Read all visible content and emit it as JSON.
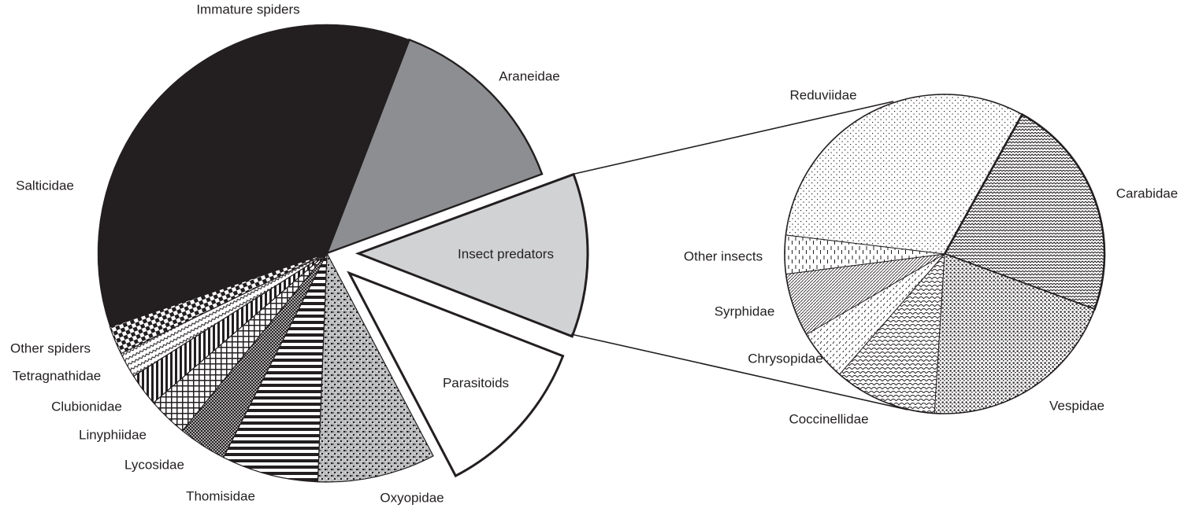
{
  "chart_data": [
    {
      "type": "pie",
      "title": "",
      "name": "Natural enemies (main pie)",
      "start_angle_deg": 251.2,
      "slices": [
        {
          "label": "Salticidae",
          "value": 15.0,
          "fill": "solid-black",
          "color": "#231f20"
        },
        {
          "label": "Immature spiders",
          "value": 21.0,
          "fill": "solid-black",
          "color": "#231f20"
        },
        {
          "label": "Araneidae",
          "value": 13.5,
          "fill": "solid-gray",
          "color": "#8d8e91"
        },
        {
          "label": "Insect predators",
          "value": 11.5,
          "fill": "solid-lightgray",
          "color": "#d1d2d4",
          "exploded": true
        },
        {
          "label": "Parasitoids",
          "value": 11.4,
          "fill": "solid-white",
          "color": "#ffffff",
          "exploded": true
        },
        {
          "label": "Oxyopidae",
          "value": 8.3,
          "fill": "dotted-dense-cross",
          "color": "#231f20"
        },
        {
          "label": "Thomisidae",
          "value": 6.8,
          "fill": "horizontal-stripes",
          "color": "#231f20"
        },
        {
          "label": "Lycosidae",
          "value": 3.4,
          "fill": "dense-crosshatch",
          "color": "#231f20"
        },
        {
          "label": "Linyphiidae",
          "value": 2.8,
          "fill": "grid",
          "color": "#231f20"
        },
        {
          "label": "Clubionidae",
          "value": 2.3,
          "fill": "vertical-stripes",
          "color": "#231f20"
        },
        {
          "label": "Tetragnathidae",
          "value": 1.8,
          "fill": "wavy",
          "color": "#231f20"
        },
        {
          "label": "Other spiders",
          "value": 2.0,
          "fill": "checkerboard",
          "color": "#231f20"
        }
      ]
    },
    {
      "type": "pie",
      "title": "",
      "name": "Insect predators breakdown (detail pie)",
      "start_angle_deg": 276.8,
      "slices": [
        {
          "label": "Reduviidae",
          "value": 31.2,
          "fill": "sparse-dots",
          "color": "#231f20"
        },
        {
          "label": "Carabidae",
          "value": 22.6,
          "fill": "zigzag",
          "color": "#231f20"
        },
        {
          "label": "Vespidae",
          "value": 20.4,
          "fill": "dense-squares",
          "color": "#231f20"
        },
        {
          "label": "Coccinellidae",
          "value": 10.4,
          "fill": "scales",
          "color": "#231f20"
        },
        {
          "label": "Chrysopidae",
          "value": 5.2,
          "fill": "dashed-diagonal",
          "color": "#231f20"
        },
        {
          "label": "Syrphidae",
          "value": 6.4,
          "fill": "diagonal-lines",
          "color": "#231f20"
        },
        {
          "label": "Other insects",
          "value": 3.9,
          "fill": "vertical-dashes",
          "color": "#231f20"
        }
      ]
    }
  ],
  "labels": {
    "main": {
      "salticidae": "Salticidae",
      "immature_spiders": "Immature spiders",
      "araneidae": "Araneidae",
      "insect_predators": "Insect predators",
      "parasitoids": "Parasitoids",
      "oxyopidae": "Oxyopidae",
      "thomisidae": "Thomisidae",
      "lycosidae": "Lycosidae",
      "linyphiidae": "Linyphiidae",
      "clubionidae": "Clubionidae",
      "tetragnathidae": "Tetragnathidae",
      "other_spiders": "Other spiders"
    },
    "detail": {
      "reduviidae": "Reduviidae",
      "carabidae": "Carabidae",
      "vespidae": "Vespidae",
      "coccinellidae": "Coccinellidae",
      "chrysopidae": "Chrysopidae",
      "syrphidae": "Syrphidae",
      "other_insects": "Other insects"
    }
  }
}
